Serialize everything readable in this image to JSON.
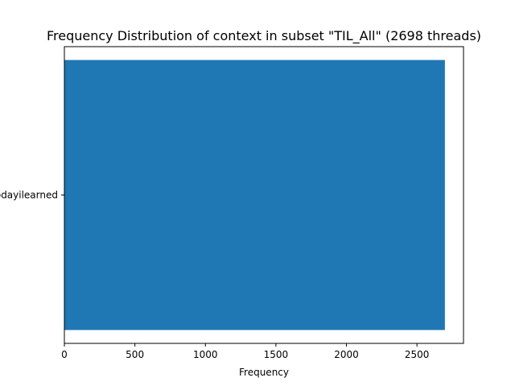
{
  "chart_data": {
    "type": "bar",
    "orientation": "horizontal",
    "title": "Frequency Distribution of context in subset \"TIL_All\" (2698 threads)",
    "xlabel": "Frequency",
    "ylabel": "",
    "categories": [
      "todayilearned"
    ],
    "values": [
      2698
    ],
    "xlim": [
      0,
      2830
    ],
    "xticks": [
      0,
      500,
      1000,
      1500,
      2000,
      2500
    ],
    "grid": false,
    "legend": "none",
    "bar_color": "#1f77b4"
  }
}
